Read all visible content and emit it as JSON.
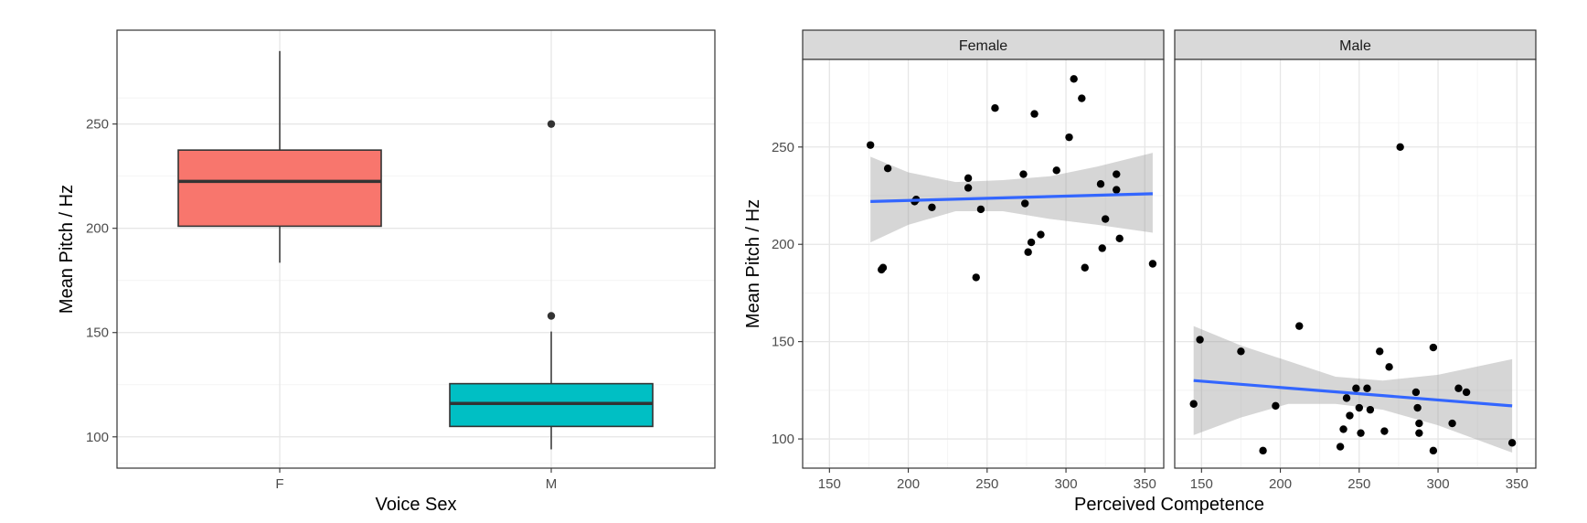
{
  "chart_data": [
    {
      "type": "boxplot",
      "xlabel": "Voice Sex",
      "ylabel": "Mean Pitch / Hz",
      "categories": [
        "F",
        "M"
      ],
      "ylim": [
        85,
        295
      ],
      "yticks": [
        100,
        150,
        200,
        250
      ],
      "grid": true,
      "boxes": [
        {
          "category": "F",
          "color": "#F8766D",
          "q1": 201,
          "median": 222.5,
          "q3": 237.5,
          "whisker_low": 183.5,
          "whisker_high": 285,
          "outliers": []
        },
        {
          "category": "M",
          "color": "#00BFC4",
          "q1": 105,
          "median": 116,
          "q3": 125.5,
          "whisker_low": 94,
          "whisker_high": 150.5,
          "outliers": [
            158,
            250
          ]
        }
      ]
    },
    {
      "type": "scatter",
      "xlabel": "Perceived Competence",
      "ylabel": "Mean Pitch / Hz",
      "xlim": [
        133,
        362
      ],
      "ylim": [
        85,
        295
      ],
      "xticks": [
        150,
        200,
        250,
        300,
        350
      ],
      "yticks": [
        100,
        150,
        200,
        250
      ],
      "grid": true,
      "trend_color": "#3366FF",
      "facets": [
        {
          "label": "Female",
          "points": [
            [
              176,
              251
            ],
            [
              187,
              239
            ],
            [
              184,
              188
            ],
            [
              183,
              187
            ],
            [
              205,
              223
            ],
            [
              204,
              222
            ],
            [
              215,
              219
            ],
            [
              238,
              234
            ],
            [
              238,
              229
            ],
            [
              246,
              218
            ],
            [
              243,
              183
            ],
            [
              255,
              270
            ],
            [
              273,
              236
            ],
            [
              274,
              221
            ],
            [
              276,
              196
            ],
            [
              278,
              201
            ],
            [
              280,
              267
            ],
            [
              284,
              205
            ],
            [
              294,
              238
            ],
            [
              302,
              255
            ],
            [
              305,
              285
            ],
            [
              310,
              275
            ],
            [
              312,
              188
            ],
            [
              322,
              231
            ],
            [
              323,
              198
            ],
            [
              325,
              213
            ],
            [
              332,
              228
            ],
            [
              332,
              236
            ],
            [
              334,
              203
            ],
            [
              355,
              190
            ]
          ],
          "fit": {
            "x": [
              176,
              355
            ],
            "y": [
              222,
              226
            ]
          },
          "band_upper": [
            [
              176,
              245
            ],
            [
              200,
              237
            ],
            [
              230,
              232
            ],
            [
              260,
              233
            ],
            [
              290,
              235
            ],
            [
              320,
              240
            ],
            [
              355,
              247
            ]
          ],
          "band_lower": [
            [
              176,
              201
            ],
            [
              200,
              210
            ],
            [
              230,
              217
            ],
            [
              260,
              217
            ],
            [
              290,
              213
            ],
            [
              320,
              210
            ],
            [
              355,
              206
            ]
          ]
        },
        {
          "label": "Male",
          "points": [
            [
              145,
              118
            ],
            [
              149,
              151
            ],
            [
              175,
              145
            ],
            [
              189,
              94
            ],
            [
              197,
              117
            ],
            [
              212,
              158
            ],
            [
              238,
              96
            ],
            [
              240,
              105
            ],
            [
              242,
              121
            ],
            [
              244,
              112
            ],
            [
              248,
              126
            ],
            [
              250,
              116
            ],
            [
              251,
              103
            ],
            [
              255,
              126
            ],
            [
              257,
              115
            ],
            [
              263,
              145
            ],
            [
              266,
              104
            ],
            [
              269,
              137
            ],
            [
              276,
              250
            ],
            [
              286,
              124
            ],
            [
              287,
              116
            ],
            [
              288,
              103
            ],
            [
              288,
              108
            ],
            [
              297,
              94
            ],
            [
              297,
              147
            ],
            [
              309,
              108
            ],
            [
              313,
              126
            ],
            [
              318,
              124
            ],
            [
              347,
              98
            ]
          ],
          "fit": {
            "x": [
              145,
              347
            ],
            "y": [
              130,
              117
            ]
          },
          "band_upper": [
            [
              145,
              158
            ],
            [
              175,
              148
            ],
            [
              205,
              140
            ],
            [
              235,
              132
            ],
            [
              265,
              130
            ],
            [
              300,
              133
            ],
            [
              347,
              141
            ]
          ],
          "band_lower": [
            [
              145,
              102
            ],
            [
              175,
              111
            ],
            [
              205,
              118
            ],
            [
              235,
              118
            ],
            [
              265,
              115
            ],
            [
              300,
              107
            ],
            [
              347,
              93
            ]
          ]
        }
      ]
    }
  ]
}
